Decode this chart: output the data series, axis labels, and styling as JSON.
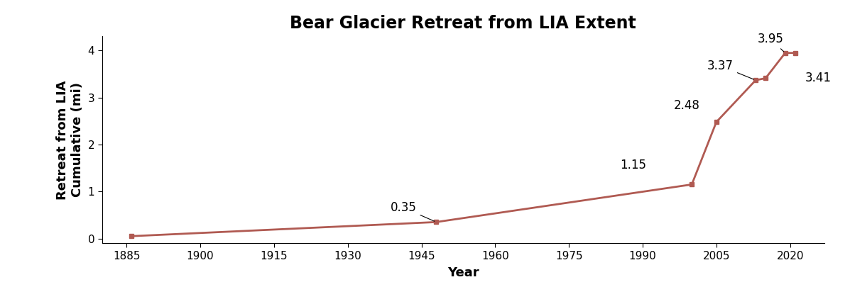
{
  "title": "Bear Glacier Retreat from LIA Extent",
  "xlabel": "Year",
  "ylabel": "Retreat from LIA\nCumulative (mi)",
  "years": [
    1886,
    1948,
    2000,
    2005,
    2013,
    2015,
    2019,
    2021
  ],
  "values": [
    0.05,
    0.35,
    1.15,
    2.48,
    3.37,
    3.41,
    3.95,
    3.95
  ],
  "line_color": "#b05a52",
  "marker_color": "#b05a52",
  "xlim": [
    1880,
    2027
  ],
  "ylim": [
    -0.1,
    4.3
  ],
  "xticks": [
    1885,
    1900,
    1915,
    1930,
    1945,
    1960,
    1975,
    1990,
    2005,
    2020
  ],
  "yticks": [
    0,
    1,
    2,
    3,
    4
  ],
  "background_color": "#ffffff",
  "title_fontsize": 17,
  "label_fontsize": 13,
  "tick_fontsize": 11,
  "annotation_fontsize": 12
}
